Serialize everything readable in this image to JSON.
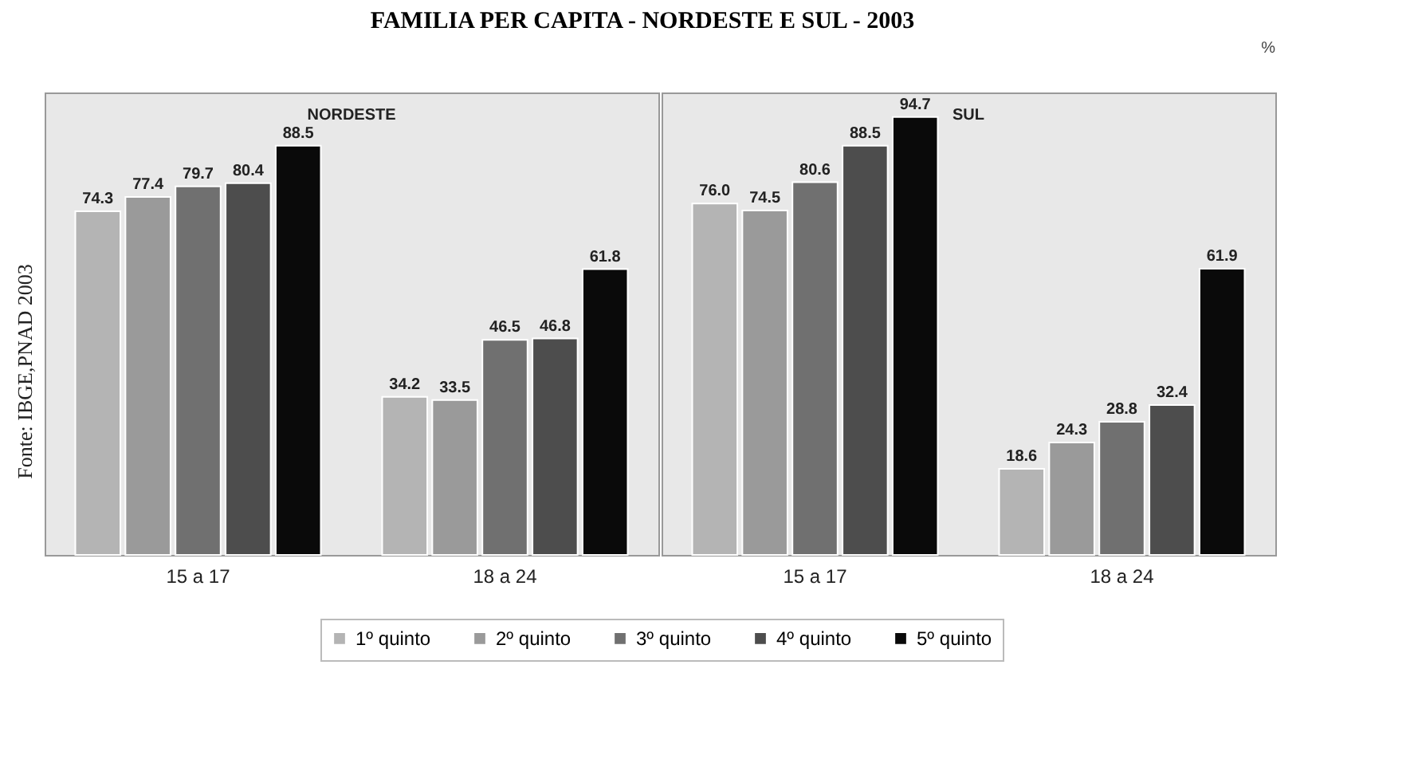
{
  "chart_data": [
    {
      "type": "bar",
      "title": "NORDESTE",
      "categories": [
        "15 a 17",
        "18 a 24"
      ],
      "ylim": [
        0,
        100
      ],
      "tick_labels": "x",
      "legend": "bottom",
      "grid": false,
      "annotations": [
        "FAMILIA PER CAPITA - NORDESTE E SUL - 2003",
        "Fonte: IBGE,PNAD 2003"
      ],
      "series": [
        {
          "name": "1º quinto",
          "color": "#b4b4b4",
          "values": [
            74.3,
            34.2
          ],
          "value_labels": [
            "74.3",
            "34.2"
          ]
        },
        {
          "name": "2º quinto",
          "color": "#9a9a9a",
          "values": [
            77.4,
            33.5
          ],
          "value_labels": [
            "77.4",
            "33.5"
          ]
        },
        {
          "name": "3º quinto",
          "color": "#707070",
          "values": [
            79.7,
            46.5
          ],
          "value_labels": [
            "79.7",
            "46.5"
          ]
        },
        {
          "name": "4º quinto",
          "color": "#4d4d4d",
          "values": [
            80.4,
            46.8
          ],
          "value_labels": [
            "80.4",
            "46.8"
          ]
        },
        {
          "name": "5º quinto",
          "color": "#0a0a0a",
          "values": [
            88.5,
            61.8
          ],
          "value_labels": [
            "88.5",
            "61.8"
          ]
        }
      ]
    },
    {
      "type": "bar",
      "title": "SUL",
      "ylabel": "%",
      "categories": [
        "15 a 17",
        "18 a 24"
      ],
      "ylim": [
        0,
        100
      ],
      "tick_labels": "x",
      "grid": false,
      "series": [
        {
          "name": "1º quinto",
          "color": "#b4b4b4",
          "values": [
            76.0,
            18.6
          ],
          "value_labels": [
            "76.0",
            "18.6"
          ]
        },
        {
          "name": "2º quinto",
          "color": "#9a9a9a",
          "values": [
            74.5,
            24.3
          ],
          "value_labels": [
            "74.5",
            "24.3"
          ]
        },
        {
          "name": "3º quinto",
          "color": "#707070",
          "values": [
            80.6,
            28.8
          ],
          "value_labels": [
            "80.6",
            "28.8"
          ]
        },
        {
          "name": "4º quinto",
          "color": "#4d4d4d",
          "values": [
            88.5,
            32.4
          ],
          "value_labels": [
            "88.5",
            "32.4"
          ]
        },
        {
          "name": "5º quinto",
          "color": "#0a0a0a",
          "values": [
            94.7,
            61.9
          ],
          "value_labels": [
            "94.7",
            "61.9"
          ]
        }
      ]
    }
  ]
}
